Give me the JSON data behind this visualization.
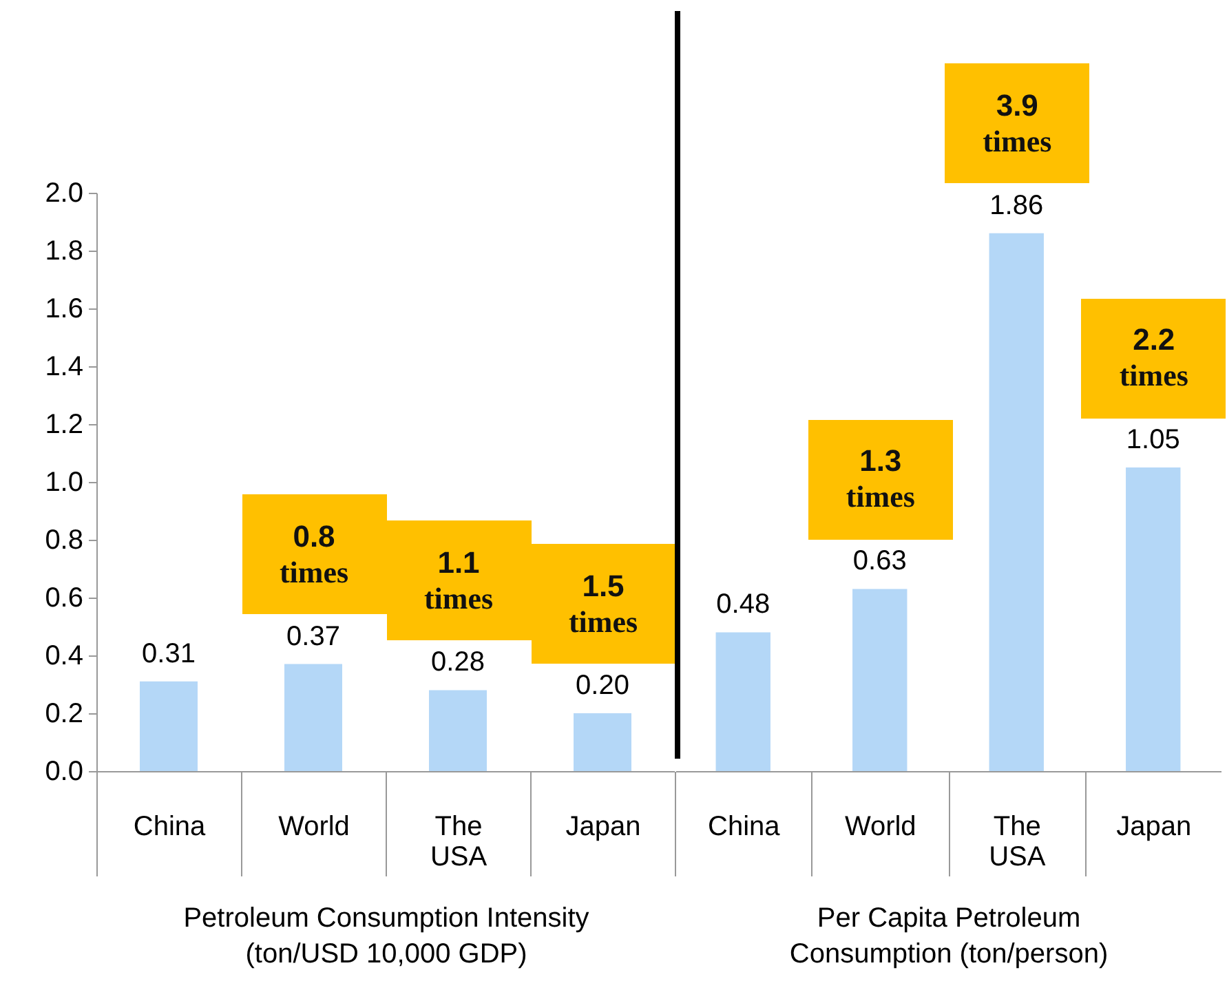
{
  "chart_data": [
    {
      "type": "bar",
      "categories": [
        "China",
        "World",
        "The USA",
        "Japan"
      ],
      "values": [
        0.31,
        0.37,
        0.28,
        0.2
      ],
      "value_labels": [
        "0.31",
        "0.37",
        "0.28",
        "0.20"
      ],
      "color": "#b4d7f7",
      "ylim": [
        0,
        2.0
      ],
      "yticks": [
        {
          "value": 0,
          "label": "0.0"
        },
        {
          "value": 0.2,
          "label": "0.2"
        },
        {
          "value": 0.4,
          "label": "0.4"
        },
        {
          "value": 0.6,
          "label": "0.6"
        },
        {
          "value": 0.8,
          "label": "0.8"
        },
        {
          "value": 1.0,
          "label": "1.0"
        },
        {
          "value": 1.2,
          "label": "1.2"
        },
        {
          "value": 1.4,
          "label": "1.4"
        },
        {
          "value": 1.6,
          "label": "1.6"
        },
        {
          "value": 1.8,
          "label": "1.8"
        },
        {
          "value": 2.0,
          "label": "2.0"
        }
      ],
      "xlabel": "Petroleum Consumption Intensity (ton/USD 10,000 GDP)",
      "annotations": [
        "0.8 times",
        "1.1 times",
        "1.5 times"
      ]
    },
    {
      "type": "bar",
      "categories": [
        "China",
        "World",
        "The USA",
        "Japan"
      ],
      "values": [
        0.48,
        0.63,
        1.86,
        1.05
      ],
      "value_labels": [
        "0.48",
        "0.63",
        "1.86",
        "1.05"
      ],
      "color": "#b4d7f7",
      "ylim": [
        0,
        2.0
      ],
      "tick_labels": "x",
      "xlabel": "Per Capita Petroleum Consumption (ton/person)",
      "annotations": [
        "1.3 times",
        "3.9 times",
        "2.2 times"
      ]
    }
  ]
}
